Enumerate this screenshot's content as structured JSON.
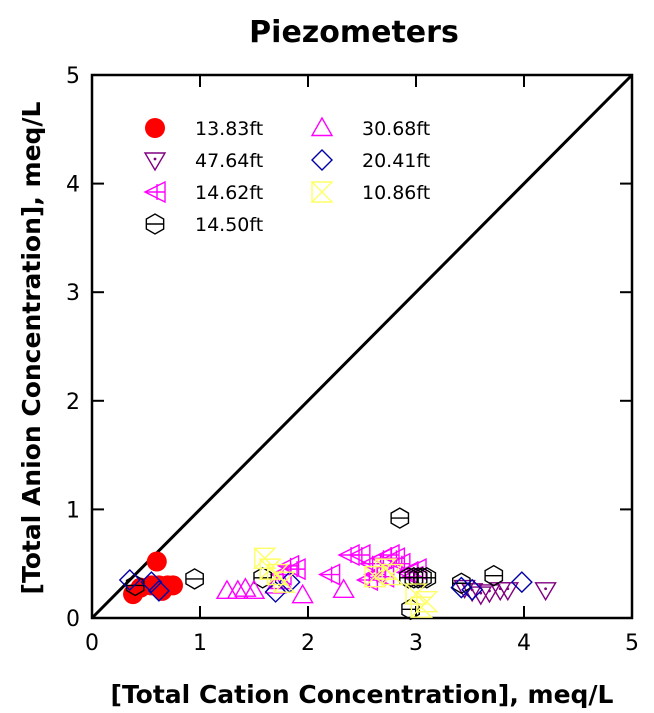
{
  "chart_data": {
    "type": "scatter",
    "title": "Piezometers",
    "xlabel": "[Total Cation Concentration], meq/L",
    "ylabel": "[Total Anion Concentration], meq/L",
    "xlim": [
      0,
      5
    ],
    "ylim": [
      0,
      5
    ],
    "xticks": [
      "0",
      "1",
      "2",
      "3",
      "4",
      "5"
    ],
    "yticks": [
      "0",
      "1",
      "2",
      "3",
      "4",
      "5"
    ],
    "grid": false,
    "legend_position": "top-left",
    "reference_line": {
      "x": [
        0,
        5
      ],
      "y": [
        0,
        5
      ],
      "color": "#000000"
    },
    "series": [
      {
        "name": "13.83ft",
        "marker": "filled-circle",
        "color": "#ff0000",
        "points": [
          [
            0.38,
            0.22
          ],
          [
            0.45,
            0.28
          ],
          [
            0.55,
            0.3
          ],
          [
            0.62,
            0.3
          ],
          [
            0.7,
            0.3
          ],
          [
            0.75,
            0.3
          ],
          [
            0.6,
            0.52
          ],
          [
            0.65,
            0.25
          ]
        ]
      },
      {
        "name": "47.64ft",
        "marker": "triangle-down-dot",
        "color": "#800080",
        "points": [
          [
            3.45,
            0.28
          ],
          [
            3.52,
            0.25
          ],
          [
            3.6,
            0.22
          ],
          [
            3.68,
            0.24
          ],
          [
            3.78,
            0.26
          ],
          [
            3.85,
            0.26
          ],
          [
            4.2,
            0.26
          ]
        ]
      },
      {
        "name": "14.62ft",
        "marker": "triangle-left-cross",
        "color": "#ff00ff",
        "points": [
          [
            1.75,
            0.4
          ],
          [
            1.82,
            0.48
          ],
          [
            1.88,
            0.45
          ],
          [
            2.2,
            0.4
          ],
          [
            2.38,
            0.58
          ],
          [
            2.48,
            0.58
          ],
          [
            2.55,
            0.35
          ],
          [
            2.62,
            0.4
          ],
          [
            2.68,
            0.55
          ],
          [
            2.75,
            0.58
          ],
          [
            2.8,
            0.55
          ],
          [
            2.85,
            0.5
          ],
          [
            2.92,
            0.42
          ],
          [
            2.97,
            0.38
          ],
          [
            3.0,
            0.45
          ],
          [
            2.7,
            0.38
          ],
          [
            2.58,
            0.5
          ]
        ]
      },
      {
        "name": "14.50ft",
        "marker": "hexagon-line",
        "color": "#000000",
        "points": [
          [
            0.4,
            0.3
          ],
          [
            0.95,
            0.36
          ],
          [
            1.58,
            0.37
          ],
          [
            2.85,
            0.92
          ],
          [
            2.93,
            0.37
          ],
          [
            2.98,
            0.37
          ],
          [
            3.02,
            0.37
          ],
          [
            3.06,
            0.37
          ],
          [
            3.1,
            0.37
          ],
          [
            2.95,
            0.08
          ],
          [
            3.42,
            0.32
          ],
          [
            3.72,
            0.39
          ]
        ]
      },
      {
        "name": "30.68ft",
        "marker": "triangle-up",
        "color": "#ff00ff",
        "points": [
          [
            1.25,
            0.25
          ],
          [
            1.35,
            0.25
          ],
          [
            1.42,
            0.27
          ],
          [
            1.5,
            0.25
          ],
          [
            1.7,
            0.3
          ],
          [
            1.75,
            0.34
          ],
          [
            1.95,
            0.21
          ],
          [
            2.33,
            0.26
          ]
        ]
      },
      {
        "name": "20.41ft",
        "marker": "diamond",
        "color": "#0000aa",
        "points": [
          [
            0.35,
            0.35
          ],
          [
            0.55,
            0.33
          ],
          [
            0.62,
            0.25
          ],
          [
            1.7,
            0.24
          ],
          [
            1.83,
            0.33
          ],
          [
            3.42,
            0.28
          ],
          [
            3.52,
            0.26
          ],
          [
            3.98,
            0.33
          ]
        ]
      },
      {
        "name": "10.86ft",
        "marker": "bowtie-x",
        "color": "#ffff66",
        "points": [
          [
            1.6,
            0.55
          ],
          [
            1.65,
            0.45
          ],
          [
            1.72,
            0.4
          ],
          [
            1.78,
            0.33
          ],
          [
            2.62,
            0.38
          ],
          [
            2.72,
            0.45
          ],
          [
            2.78,
            0.4
          ],
          [
            3.0,
            0.22
          ],
          [
            3.05,
            0.1
          ],
          [
            3.1,
            0.15
          ]
        ]
      }
    ]
  }
}
